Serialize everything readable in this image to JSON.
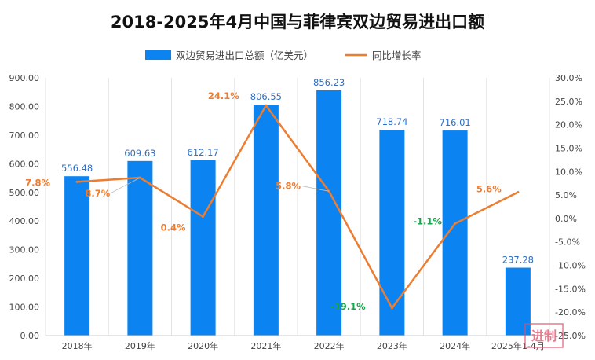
{
  "chart_data": {
    "type": "bar",
    "title": "2018-2025年4月中国与菲律宾双边贸易进出口额",
    "categories": [
      "2018年",
      "2019年",
      "2020年",
      "2021年",
      "2022年",
      "2023年",
      "2024年",
      "2025年1-4月"
    ],
    "series": [
      {
        "name": "双边贸易进出口总额（亿美元）",
        "type": "bar",
        "axis": "left",
        "color": "#0b84f2",
        "values": [
          556.48,
          609.63,
          612.17,
          806.55,
          856.23,
          718.74,
          716.01,
          237.28
        ],
        "labels": [
          "556.48",
          "609.63",
          "612.17",
          "806.55",
          "856.23",
          "718.74",
          "716.01",
          "237.28"
        ]
      },
      {
        "name": "同比增长率",
        "type": "line",
        "axis": "right",
        "color": "#ed7d31",
        "values": [
          7.8,
          8.7,
          0.4,
          24.1,
          5.8,
          -19.1,
          -1.1,
          5.6
        ],
        "labels": [
          "7.8%",
          "8.7%",
          "0.4%",
          "24.1%",
          "5.8%",
          "-19.1%",
          "-1.1%",
          "5.6%"
        ],
        "label_colors": [
          "#ed7d31",
          "#ed7d31",
          "#ed7d31",
          "#ed7d31",
          "#ed7d31",
          "#1aa34a",
          "#1aa34a",
          "#ed7d31"
        ]
      }
    ],
    "y_left": {
      "min": 0,
      "max": 900,
      "step": 100,
      "ticks": [
        "0.00",
        "100.00",
        "200.00",
        "300.00",
        "400.00",
        "500.00",
        "600.00",
        "700.00",
        "800.00",
        "900.00"
      ]
    },
    "y_right": {
      "min": -25,
      "max": 30,
      "step": 5,
      "ticks": [
        "-25.0%",
        "-20.0%",
        "-15.0%",
        "-10.0%",
        "-5.0%",
        "0.0%",
        "5.0%",
        "10.0%",
        "15.0%",
        "20.0%",
        "25.0%",
        "30.0%"
      ]
    },
    "legend_position": "top-center",
    "grid": "vertical"
  },
  "watermark": {
    "text": "进制",
    "color": "#e0506a"
  }
}
